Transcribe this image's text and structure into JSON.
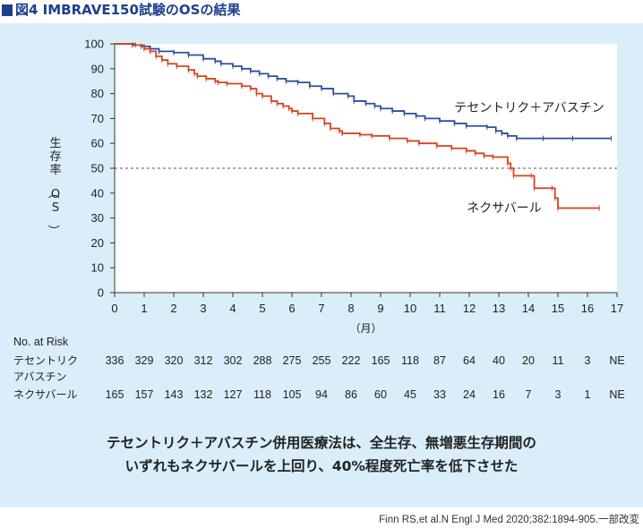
{
  "figure": {
    "number": "図4",
    "title": "IMBRAVE150試験のOSの結果"
  },
  "colors": {
    "series_blue": "#2b4f9b",
    "series_orange": "#d9421c",
    "title_blue": "#1d3f8c",
    "panel_background": "#d9eef9"
  },
  "chart_data": {
    "type": "line",
    "step": true,
    "ylabel": "生存率（OS）",
    "xunit": "（月）",
    "xlim": [
      0,
      17
    ],
    "ylim": [
      0,
      100
    ],
    "xticks": [
      0,
      1,
      2,
      3,
      4,
      5,
      6,
      7,
      8,
      9,
      10,
      11,
      12,
      13,
      14,
      15,
      16,
      17
    ],
    "yticks": [
      0,
      10,
      20,
      30,
      40,
      50,
      60,
      70,
      80,
      90,
      100
    ],
    "reference_line": {
      "y": 50,
      "style": "dashed"
    },
    "grid": false,
    "series": [
      {
        "name": "テセントリク＋アバスチン",
        "color": "#2b4f9b",
        "points": [
          [
            0,
            100
          ],
          [
            0.6,
            99.5
          ],
          [
            0.9,
            99
          ],
          [
            1.2,
            98
          ],
          [
            1.5,
            97
          ],
          [
            2.0,
            96.5
          ],
          [
            2.5,
            95.5
          ],
          [
            3.0,
            94
          ],
          [
            3.4,
            93
          ],
          [
            3.6,
            92
          ],
          [
            4.0,
            91
          ],
          [
            4.3,
            90
          ],
          [
            4.6,
            89
          ],
          [
            4.9,
            88
          ],
          [
            5.2,
            87
          ],
          [
            5.5,
            86
          ],
          [
            5.8,
            85
          ],
          [
            6.2,
            84.5
          ],
          [
            6.6,
            83
          ],
          [
            7.0,
            82
          ],
          [
            7.4,
            80
          ],
          [
            7.9,
            79
          ],
          [
            8.1,
            77
          ],
          [
            8.5,
            76
          ],
          [
            8.8,
            75
          ],
          [
            9.0,
            74
          ],
          [
            9.4,
            73
          ],
          [
            9.8,
            72
          ],
          [
            10.2,
            71
          ],
          [
            10.5,
            70
          ],
          [
            11.0,
            69
          ],
          [
            11.5,
            68
          ],
          [
            11.9,
            67
          ],
          [
            12.6,
            66.5
          ],
          [
            12.9,
            65
          ],
          [
            13.1,
            64
          ],
          [
            13.3,
            63
          ],
          [
            13.6,
            62
          ],
          [
            14.5,
            62
          ],
          [
            15.5,
            62
          ],
          [
            16.8,
            62
          ]
        ]
      },
      {
        "name": "ネクサバール",
        "color": "#d9421c",
        "points": [
          [
            0,
            100
          ],
          [
            0.7,
            99.5
          ],
          [
            1.0,
            98
          ],
          [
            1.2,
            97
          ],
          [
            1.4,
            95
          ],
          [
            1.6,
            93.5
          ],
          [
            1.8,
            92
          ],
          [
            2.1,
            91
          ],
          [
            2.5,
            89.5
          ],
          [
            2.7,
            88
          ],
          [
            2.8,
            87
          ],
          [
            3.1,
            86
          ],
          [
            3.4,
            85
          ],
          [
            3.5,
            84.5
          ],
          [
            3.8,
            84
          ],
          [
            4.3,
            83
          ],
          [
            4.6,
            82
          ],
          [
            4.8,
            80
          ],
          [
            5.0,
            79
          ],
          [
            5.3,
            77
          ],
          [
            5.5,
            76
          ],
          [
            5.7,
            75
          ],
          [
            5.9,
            74
          ],
          [
            6.0,
            73
          ],
          [
            6.2,
            72
          ],
          [
            6.7,
            70
          ],
          [
            7.1,
            68
          ],
          [
            7.3,
            66
          ],
          [
            7.6,
            65
          ],
          [
            7.7,
            64
          ],
          [
            8.3,
            63.5
          ],
          [
            8.7,
            63
          ],
          [
            9.3,
            62
          ],
          [
            9.9,
            61
          ],
          [
            10.3,
            60
          ],
          [
            10.9,
            59
          ],
          [
            11.4,
            58
          ],
          [
            11.9,
            57
          ],
          [
            12.2,
            56
          ],
          [
            12.5,
            55
          ],
          [
            12.8,
            54.5
          ],
          [
            13.3,
            52
          ],
          [
            13.4,
            50
          ],
          [
            13.5,
            47
          ],
          [
            14.1,
            47
          ],
          [
            14.2,
            42
          ],
          [
            14.8,
            42
          ],
          [
            14.9,
            38
          ],
          [
            15.0,
            34
          ],
          [
            16.4,
            34
          ]
        ]
      }
    ],
    "series_labels": [
      {
        "text": "テセントリク＋アバスチン",
        "color": "#2b4f9b"
      },
      {
        "text": "ネクサバール",
        "color": "#d9421c"
      }
    ]
  },
  "risk_table": {
    "header": "No. at Risk",
    "rows": [
      {
        "label_line1": "テセントリク",
        "label_line2": "アバスチン",
        "values": [
          "336",
          "329",
          "320",
          "312",
          "302",
          "288",
          "275",
          "255",
          "222",
          "165",
          "118",
          "87",
          "64",
          "40",
          "20",
          "11",
          "3",
          "NE"
        ]
      },
      {
        "label_line1": "ネクサバール",
        "label_line2": "",
        "values": [
          "165",
          "157",
          "143",
          "132",
          "127",
          "118",
          "105",
          "94",
          "86",
          "60",
          "45",
          "33",
          "24",
          "16",
          "7",
          "3",
          "1",
          "NE"
        ]
      }
    ]
  },
  "conclusion": {
    "line1": "テセントリク＋アバスチン併用医療法は、全生存、無増悪生存期間の",
    "line2": "いずれもネクサバールを上回り、40%程度死亡率を低下させた"
  },
  "citation": "Finn RS,et al.N Engl J Med 2020;382:1894-905.一部改変"
}
